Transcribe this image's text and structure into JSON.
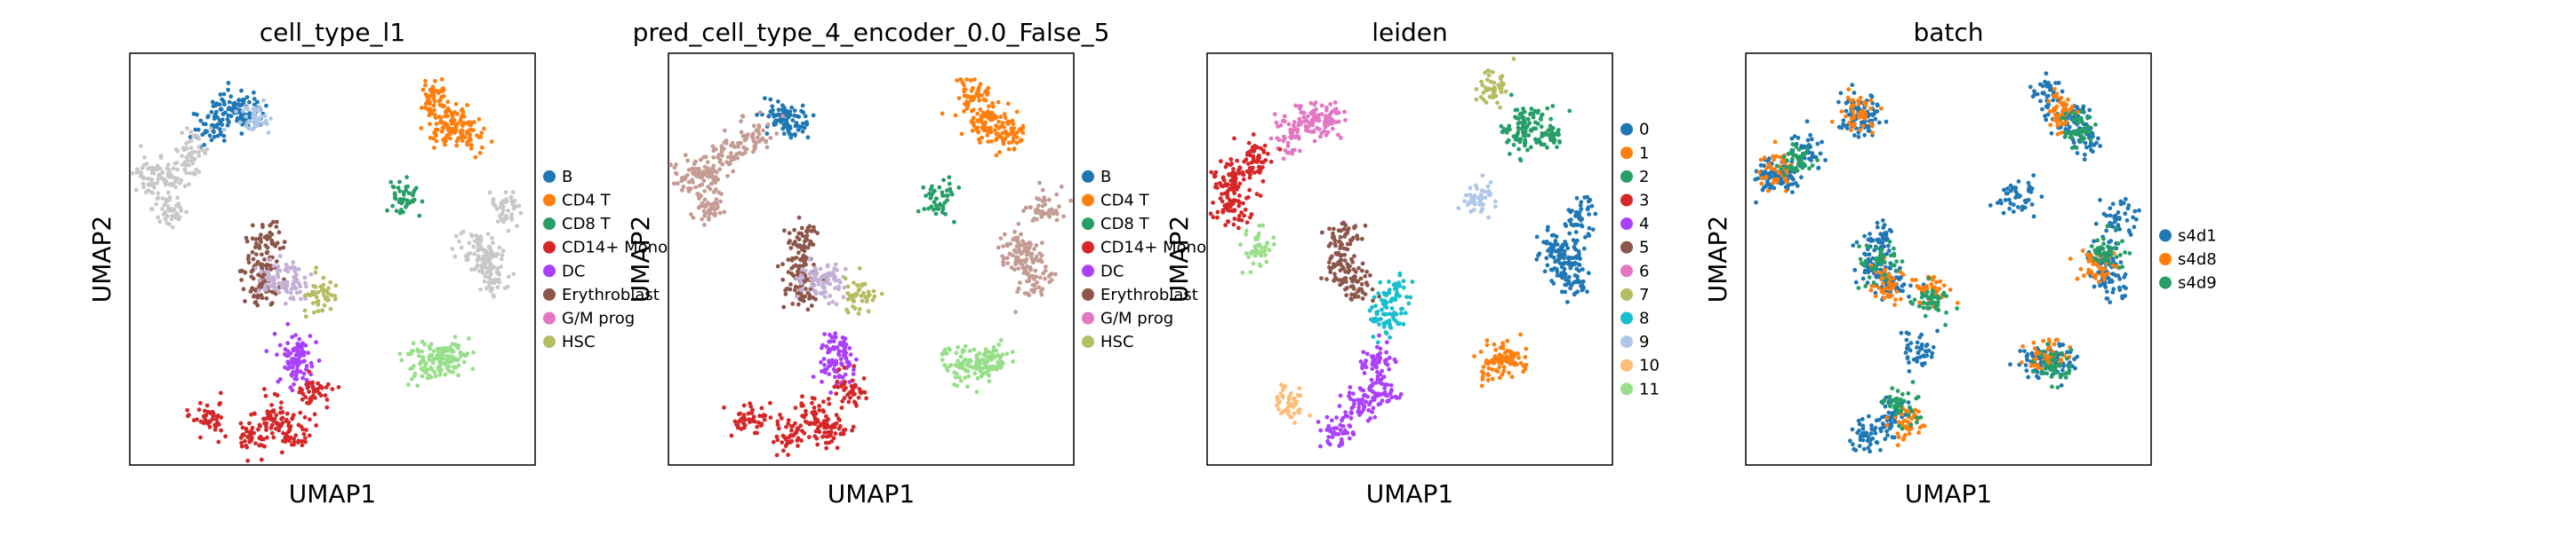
{
  "chart_data": [
    {
      "type": "scatter",
      "title": "cell_type_l1",
      "xlabel": "UMAP1",
      "ylabel": "UMAP2",
      "legend": [
        {
          "label": "B",
          "color": "#1f77b4"
        },
        {
          "label": "CD4 T",
          "color": "#ff7f0e"
        },
        {
          "label": "CD8 T",
          "color": "#279e68"
        },
        {
          "label": "CD14+ Mono",
          "color": "#d62728"
        },
        {
          "label": "DC",
          "color": "#aa40fc"
        },
        {
          "label": "Erythroblast",
          "color": "#8c564b"
        },
        {
          "label": "G/M prog",
          "color": "#e377c2"
        },
        {
          "label": "HSC",
          "color": "#b5bd61"
        }
      ],
      "clusters": [
        {
          "color": "#1f77b4",
          "points": [
            [
              0.25,
              0.13
            ],
            [
              0.29,
              0.14
            ],
            [
              0.2,
              0.18
            ]
          ]
        },
        {
          "color": "#aec7e8",
          "points": [
            [
              0.31,
              0.16
            ]
          ]
        },
        {
          "color": "#c8c8c8",
          "points": [
            [
              0.1,
              0.3
            ],
            [
              0.05,
              0.3
            ],
            [
              0.15,
              0.24
            ],
            [
              0.1,
              0.38
            ]
          ]
        },
        {
          "color": "#ff7f0e",
          "points": [
            [
              0.75,
              0.1
            ],
            [
              0.8,
              0.16
            ],
            [
              0.84,
              0.2
            ],
            [
              0.77,
              0.18
            ]
          ]
        },
        {
          "color": "#279e68",
          "points": [
            [
              0.67,
              0.35
            ]
          ]
        },
        {
          "color": "#c8c8c8",
          "points": [
            [
              0.88,
              0.5
            ],
            [
              0.9,
              0.55
            ],
            [
              0.86,
              0.47
            ],
            [
              0.92,
              0.38
            ]
          ]
        },
        {
          "color": "#8c564b",
          "points": [
            [
              0.33,
              0.45
            ],
            [
              0.32,
              0.52
            ],
            [
              0.33,
              0.57
            ]
          ]
        },
        {
          "color": "#c5b0d5",
          "points": [
            [
              0.36,
              0.55
            ],
            [
              0.4,
              0.56
            ]
          ]
        },
        {
          "color": "#b5bd61",
          "points": [
            [
              0.47,
              0.59
            ]
          ]
        },
        {
          "color": "#aa40fc",
          "points": [
            [
              0.42,
              0.72
            ],
            [
              0.41,
              0.77
            ]
          ]
        },
        {
          "color": "#d62728",
          "points": [
            [
              0.36,
              0.88
            ],
            [
              0.4,
              0.92
            ],
            [
              0.3,
              0.93
            ],
            [
              0.2,
              0.88
            ],
            [
              0.45,
              0.82
            ]
          ]
        },
        {
          "color": "#98df8a",
          "points": [
            [
              0.72,
              0.75
            ],
            [
              0.77,
              0.75
            ],
            [
              0.8,
              0.74
            ]
          ]
        }
      ]
    },
    {
      "type": "scatter",
      "title": "pred_cell_type_4_encoder_0.0_False_5",
      "xlabel": "UMAP1",
      "ylabel": "UMAP2",
      "legend": [
        {
          "label": "B",
          "color": "#1f77b4"
        },
        {
          "label": "CD4 T",
          "color": "#ff7f0e"
        },
        {
          "label": "CD8 T",
          "color": "#279e68"
        },
        {
          "label": "CD14+ Mono",
          "color": "#d62728"
        },
        {
          "label": "DC",
          "color": "#aa40fc"
        },
        {
          "label": "Erythroblast",
          "color": "#8c564b"
        },
        {
          "label": "G/M prog",
          "color": "#e377c2"
        },
        {
          "label": "HSC",
          "color": "#b5bd61"
        }
      ],
      "clusters": [
        {
          "color": "#1f77b4",
          "points": [
            [
              0.27,
              0.15
            ],
            [
              0.3,
              0.16
            ]
          ]
        },
        {
          "color": "#c49c94",
          "points": [
            [
              0.1,
              0.3
            ],
            [
              0.05,
              0.3
            ],
            [
              0.15,
              0.24
            ],
            [
              0.1,
              0.38
            ],
            [
              0.22,
              0.2
            ]
          ]
        },
        {
          "color": "#ff7f0e",
          "points": [
            [
              0.75,
              0.1
            ],
            [
              0.8,
              0.16
            ],
            [
              0.84,
              0.2
            ],
            [
              0.77,
              0.18
            ]
          ]
        },
        {
          "color": "#279e68",
          "points": [
            [
              0.67,
              0.35
            ]
          ]
        },
        {
          "color": "#c49c94",
          "points": [
            [
              0.88,
              0.5
            ],
            [
              0.9,
              0.55
            ],
            [
              0.86,
              0.47
            ],
            [
              0.92,
              0.38
            ]
          ]
        },
        {
          "color": "#8c564b",
          "points": [
            [
              0.33,
              0.45
            ],
            [
              0.32,
              0.52
            ],
            [
              0.33,
              0.57
            ]
          ]
        },
        {
          "color": "#c5b0d5",
          "points": [
            [
              0.36,
              0.55
            ],
            [
              0.4,
              0.56
            ]
          ]
        },
        {
          "color": "#b5bd61",
          "points": [
            [
              0.47,
              0.59
            ]
          ]
        },
        {
          "color": "#aa40fc",
          "points": [
            [
              0.42,
              0.72
            ],
            [
              0.41,
              0.77
            ]
          ]
        },
        {
          "color": "#d62728",
          "points": [
            [
              0.36,
              0.88
            ],
            [
              0.4,
              0.92
            ],
            [
              0.3,
              0.93
            ],
            [
              0.2,
              0.88
            ],
            [
              0.45,
              0.82
            ]
          ]
        },
        {
          "color": "#98df8a",
          "points": [
            [
              0.72,
              0.75
            ],
            [
              0.77,
              0.75
            ],
            [
              0.8,
              0.74
            ]
          ]
        }
      ]
    },
    {
      "type": "scatter",
      "title": "leiden",
      "xlabel": "UMAP1",
      "ylabel": "UMAP2",
      "legend": [
        {
          "label": "0",
          "color": "#1f77b4"
        },
        {
          "label": "1",
          "color": "#ff7f0e"
        },
        {
          "label": "2",
          "color": "#279e68"
        },
        {
          "label": "3",
          "color": "#d62728"
        },
        {
          "label": "4",
          "color": "#aa40fc"
        },
        {
          "label": "5",
          "color": "#8c564b"
        },
        {
          "label": "6",
          "color": "#e377c2"
        },
        {
          "label": "7",
          "color": "#b5bd61"
        },
        {
          "label": "8",
          "color": "#17becf"
        },
        {
          "label": "9",
          "color": "#aec7e8"
        },
        {
          "label": "10",
          "color": "#ffbb78"
        },
        {
          "label": "11",
          "color": "#98df8a"
        }
      ],
      "clusters": [
        {
          "color": "#e377c2",
          "points": [
            [
              0.25,
              0.16
            ],
            [
              0.3,
              0.17
            ],
            [
              0.2,
              0.2
            ]
          ]
        },
        {
          "color": "#d62728",
          "points": [
            [
              0.08,
              0.3
            ],
            [
              0.05,
              0.32
            ],
            [
              0.12,
              0.25
            ],
            [
              0.06,
              0.38
            ]
          ]
        },
        {
          "color": "#b5bd61",
          "points": [
            [
              0.7,
              0.08
            ]
          ]
        },
        {
          "color": "#279e68",
          "points": [
            [
              0.8,
              0.16
            ],
            [
              0.84,
              0.2
            ],
            [
              0.77,
              0.2
            ]
          ]
        },
        {
          "color": "#aec7e8",
          "points": [
            [
              0.67,
              0.35
            ]
          ]
        },
        {
          "color": "#1f77b4",
          "points": [
            [
              0.88,
              0.5
            ],
            [
              0.9,
              0.55
            ],
            [
              0.86,
              0.47
            ],
            [
              0.92,
              0.4
            ]
          ]
        },
        {
          "color": "#8c564b",
          "points": [
            [
              0.34,
              0.45
            ],
            [
              0.33,
              0.52
            ],
            [
              0.37,
              0.56
            ]
          ]
        },
        {
          "color": "#17becf",
          "points": [
            [
              0.46,
              0.59
            ],
            [
              0.44,
              0.65
            ]
          ]
        },
        {
          "color": "#aa40fc",
          "points": [
            [
              0.42,
              0.75
            ],
            [
              0.38,
              0.85
            ],
            [
              0.32,
              0.92
            ],
            [
              0.43,
              0.82
            ]
          ]
        },
        {
          "color": "#ffbb78",
          "points": [
            [
              0.2,
              0.85
            ]
          ]
        },
        {
          "color": "#98df8a",
          "points": [
            [
              0.12,
              0.47
            ]
          ]
        },
        {
          "color": "#ff7f0e",
          "points": [
            [
              0.7,
              0.75
            ],
            [
              0.75,
              0.74
            ]
          ]
        }
      ]
    },
    {
      "type": "scatter",
      "title": "batch",
      "xlabel": "UMAP1",
      "ylabel": "UMAP2",
      "legend": [
        {
          "label": "s4d1",
          "color": "#1f77b4"
        },
        {
          "label": "s4d8",
          "color": "#ff7f0e"
        },
        {
          "label": "s4d9",
          "color": "#279e68"
        }
      ],
      "clusters": [
        {
          "color": "#1f77b4",
          "points": [
            [
              0.27,
              0.15
            ],
            [
              0.3,
              0.16
            ],
            [
              0.1,
              0.3
            ],
            [
              0.05,
              0.3
            ],
            [
              0.15,
              0.24
            ],
            [
              0.75,
              0.1
            ],
            [
              0.8,
              0.16
            ],
            [
              0.84,
              0.2
            ],
            [
              0.67,
              0.35
            ],
            [
              0.88,
              0.5
            ],
            [
              0.9,
              0.55
            ],
            [
              0.92,
              0.4
            ],
            [
              0.33,
              0.45
            ],
            [
              0.32,
              0.52
            ],
            [
              0.36,
              0.56
            ],
            [
              0.42,
              0.72
            ],
            [
              0.36,
              0.88
            ],
            [
              0.3,
              0.93
            ],
            [
              0.72,
              0.75
            ],
            [
              0.77,
              0.75
            ]
          ]
        },
        {
          "color": "#ff7f0e",
          "points": [
            [
              0.28,
              0.14
            ],
            [
              0.08,
              0.28
            ],
            [
              0.78,
              0.14
            ],
            [
              0.87,
              0.52
            ],
            [
              0.34,
              0.56
            ],
            [
              0.4,
              0.9
            ],
            [
              0.74,
              0.74
            ],
            [
              0.45,
              0.58
            ]
          ]
        },
        {
          "color": "#279e68",
          "points": [
            [
              0.12,
              0.26
            ],
            [
              0.82,
              0.18
            ],
            [
              0.9,
              0.48
            ],
            [
              0.33,
              0.5
            ],
            [
              0.38,
              0.86
            ],
            [
              0.76,
              0.76
            ],
            [
              0.46,
              0.6
            ]
          ]
        }
      ]
    }
  ]
}
